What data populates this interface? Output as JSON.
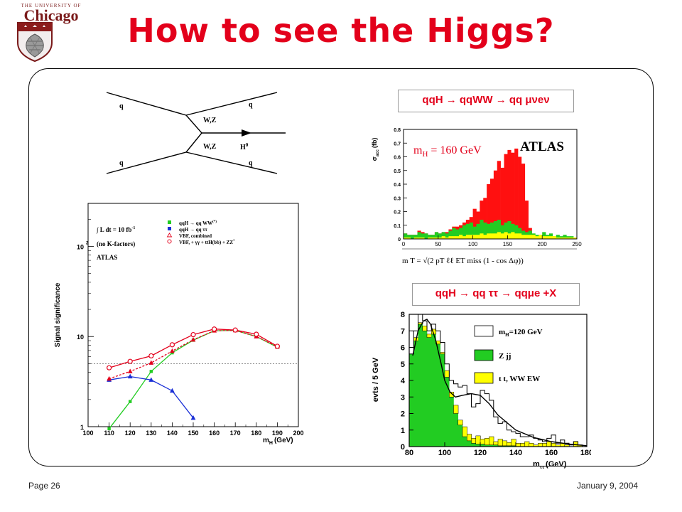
{
  "logo": {
    "top_text": "THE UNIVERSITY OF",
    "main_text": "Chicago"
  },
  "title": "How to see the Higgs?",
  "footer": {
    "page": "Page 26",
    "date": "January 9, 2004"
  },
  "feynman": {
    "q_tl": "q",
    "q_bl": "q",
    "q_tr": "q",
    "q_br": "q",
    "boson_upper": "W,Z",
    "boson_lower": "W,Z",
    "higgs": "H",
    "higgs_sup": "0"
  },
  "chart_data": [
    {
      "type": "line",
      "xlabel": "m",
      "xlabel_sub": "H",
      "xlabel_unit": "(GeV)",
      "ylabel": "Signal significance",
      "log_y": true,
      "xlim": [
        100,
        200
      ],
      "ylim": [
        1,
        300
      ],
      "xticks": [
        "100",
        "110",
        "120",
        "130",
        "140",
        "150",
        "160",
        "170",
        "180",
        "190",
        "200"
      ],
      "yticks": [
        {
          "value": 1,
          "label": "1"
        },
        {
          "value": 10,
          "label": "10"
        },
        {
          "value": 100,
          "label": "10",
          "sup": "2"
        }
      ],
      "annotations": [
        "∫ L dt = 10 fb",
        "-1",
        "(no K-factors)",
        "ATLAS"
      ],
      "reference_line": 5,
      "legend": [
        {
          "label": "qqH  →  qq WW",
          "sup": "(*)",
          "marker": "filled-square",
          "color": "#22cc22"
        },
        {
          "label": "qqH  →  qq ττ",
          "marker": "filled-square",
          "color": "#1a2fd6"
        },
        {
          "label": "VBF, combined",
          "marker": "open-triangle",
          "color": "#e3001b"
        },
        {
          "label": "VBF, + γγ + ttH(bb) + ZZ",
          "sup": "*",
          "marker": "open-circle",
          "color": "#e3001b"
        }
      ],
      "series": [
        {
          "name": "qqH → qq WW(*)",
          "color": "#22cc22",
          "marker": "square",
          "x": [
            110,
            120,
            130,
            140,
            150,
            160,
            170,
            180,
            190
          ],
          "y": [
            0.95,
            1.9,
            4.1,
            6.6,
            9.1,
            11.6,
            11.7,
            10.0,
            7.6
          ]
        },
        {
          "name": "qqH → qq ττ",
          "color": "#1a2fd6",
          "marker": "triangle",
          "x": [
            110,
            120,
            130,
            140,
            150
          ],
          "y": [
            3.3,
            3.6,
            3.3,
            2.5,
            1.25
          ]
        },
        {
          "name": "VBF, combined",
          "color": "#e3001b",
          "marker": "triangle",
          "dashed": true,
          "x": [
            110,
            120,
            130,
            140,
            150,
            160,
            170,
            180,
            190
          ],
          "y": [
            3.4,
            4.1,
            5.1,
            6.9,
            9.2,
            11.6,
            11.7,
            10.0,
            7.7
          ]
        },
        {
          "name": "VBF, + γγ + ttH(bb) + ZZ*",
          "color": "#e3001b",
          "marker": "circle",
          "x": [
            110,
            120,
            130,
            140,
            150,
            160,
            170,
            180,
            190
          ],
          "y": [
            4.5,
            5.3,
            6.1,
            8.1,
            10.5,
            12.1,
            11.8,
            10.6,
            7.8
          ]
        }
      ]
    },
    {
      "type": "bar",
      "title": "qqH  →  qqWW  →  qq μνeν",
      "ylabel": "σ",
      "ylabel_sub": "acc",
      "ylabel_unit": "(fb)",
      "annotations": [
        "m",
        "H",
        " = 160 GeV",
        "ATLAS"
      ],
      "xlim": [
        0,
        250
      ],
      "ylim": [
        0,
        0.8
      ],
      "xticks": [
        "0",
        "50",
        "100",
        "150",
        "200",
        "250"
      ],
      "yticks": [
        "0",
        "0.1",
        "0.2",
        "0.3",
        "0.4",
        "0.5",
        "0.6",
        "0.7",
        "0.8"
      ],
      "formula": "m T = √(2 pT ℓℓ ET miss (1 - cos Δφ))",
      "bin_width": 5,
      "series": [
        {
          "name": "signal",
          "color": "#ff1010",
          "values": [
            0.04,
            0.03,
            0.03,
            0.03,
            0.06,
            0.05,
            0.04,
            0.03,
            0.03,
            0.05,
            0.04,
            0.05,
            0.05,
            0.07,
            0.09,
            0.09,
            0.1,
            0.12,
            0.14,
            0.16,
            0.22,
            0.2,
            0.28,
            0.3,
            0.4,
            0.44,
            0.5,
            0.57,
            0.52,
            0.62,
            0.65,
            0.63,
            0.66,
            0.6,
            0.55,
            0.28,
            0.08,
            0.02,
            0.01,
            0.0,
            0.0,
            0.0,
            0.0,
            0.0,
            0.0,
            0.0,
            0.0,
            0.0,
            0.0,
            0.0
          ]
        },
        {
          "name": "background-green",
          "color": "#22cc22",
          "values": [
            0.04,
            0.03,
            0.03,
            0.03,
            0.05,
            0.04,
            0.04,
            0.03,
            0.03,
            0.05,
            0.04,
            0.05,
            0.04,
            0.06,
            0.08,
            0.07,
            0.08,
            0.1,
            0.11,
            0.12,
            0.09,
            0.11,
            0.14,
            0.12,
            0.11,
            0.12,
            0.13,
            0.14,
            0.1,
            0.12,
            0.13,
            0.11,
            0.1,
            0.08,
            0.06,
            0.05,
            0.06,
            0.04,
            0.03,
            0.03,
            0.05,
            0.03,
            0.04,
            0.02,
            0.03,
            0.02,
            0.03,
            0.02,
            0.02,
            0.01
          ]
        },
        {
          "name": "background-yellow",
          "color": "#ffff00",
          "values": [
            0.01,
            0.01,
            0.0,
            0.01,
            0.01,
            0.01,
            0.0,
            0.01,
            0.01,
            0.01,
            0.01,
            0.02,
            0.01,
            0.02,
            0.02,
            0.02,
            0.03,
            0.02,
            0.03,
            0.03,
            0.03,
            0.03,
            0.04,
            0.03,
            0.04,
            0.04,
            0.04,
            0.05,
            0.04,
            0.05,
            0.04,
            0.05,
            0.04,
            0.04,
            0.03,
            0.03,
            0.03,
            0.03,
            0.02,
            0.03,
            0.02,
            0.02,
            0.02,
            0.02,
            0.01,
            0.01,
            0.01,
            0.01,
            0.01,
            0.01
          ]
        }
      ]
    },
    {
      "type": "bar",
      "title": "qqH  →  qq ττ  →  qqμe +X",
      "ylabel": "evts / 5 GeV",
      "xlabel": "m",
      "xlabel_sub": "ττ",
      "xlabel_unit": "(GeV)",
      "xlim": [
        80,
        180
      ],
      "ylim": [
        0,
        8
      ],
      "xticks": [
        "80",
        "100",
        "120",
        "140",
        "160",
        "180"
      ],
      "yticks": [
        "0",
        "1",
        "2",
        "3",
        "4",
        "5",
        "6",
        "7",
        "8"
      ],
      "bin_width": 2.5,
      "legend": [
        {
          "label": "m",
          "sub": "H",
          "suffix": "=120 GeV",
          "style": "open-box"
        },
        {
          "label": "Z jj",
          "style": "green-box"
        },
        {
          "label": "t t, WW EW",
          "style": "yellow-box"
        }
      ],
      "series": [
        {
          "name": "Z jj",
          "color": "#22cc22",
          "values": [
            5.6,
            6.4,
            7.4,
            7.0,
            6.6,
            6.8,
            6.2,
            5.6,
            4.2,
            3.0,
            2.0,
            1.3,
            0.6,
            0.35,
            0.2,
            0.15,
            0.15,
            0.1,
            0.1,
            0.1,
            0.05,
            0.05,
            0.05,
            0.05,
            0.0,
            0.0,
            0.0,
            0.0,
            0.0,
            0.0,
            0.0,
            0.0,
            0.0,
            0.0,
            0.0,
            0.0,
            0.0,
            0.0,
            0.0,
            0.0
          ]
        },
        {
          "name": "t t, WW EW",
          "color": "#ffff00",
          "values": [
            0.0,
            0.2,
            0.1,
            0.3,
            0.2,
            0.3,
            0.2,
            0.1,
            0.4,
            0.3,
            0.5,
            0.3,
            0.6,
            0.4,
            0.3,
            0.5,
            0.3,
            0.4,
            0.5,
            0.2,
            0.4,
            0.3,
            0.2,
            0.4,
            0.2,
            0.2,
            0.3,
            0.2,
            0.1,
            0.2,
            0.2,
            0.3,
            0.2,
            0.1,
            0.2,
            0.1,
            0.0,
            0.3,
            0.1,
            0.0
          ]
        },
        {
          "name": "mH=120 GeV",
          "color": "#000000",
          "values": [
            5.6,
            7.0,
            8.0,
            7.6,
            7.0,
            7.4,
            7.0,
            6.3,
            5.0,
            4.0,
            3.8,
            3.6,
            3.7,
            3.2,
            2.4,
            2.6,
            3.4,
            3.2,
            2.8,
            1.8,
            1.4,
            1.5,
            1.0,
            0.9,
            0.8,
            0.6,
            0.6,
            0.7,
            0.5,
            0.4,
            0.3,
            0.5,
            0.7,
            0.2,
            0.4,
            0.2,
            0.1,
            0.3,
            0.1,
            0.0
          ]
        }
      ],
      "curve": {
        "x": [
          82,
          85,
          88,
          90,
          92,
          95,
          98,
          100,
          103,
          106,
          110,
          115,
          120,
          125,
          130,
          140,
          150,
          160,
          170,
          180
        ],
        "y": [
          5.5,
          7.0,
          7.6,
          7.7,
          7.4,
          6.4,
          5.0,
          4.0,
          3.3,
          3.0,
          3.1,
          3.2,
          3.1,
          2.6,
          1.9,
          1.0,
          0.55,
          0.3,
          0.15,
          0.05
        ]
      }
    }
  ]
}
